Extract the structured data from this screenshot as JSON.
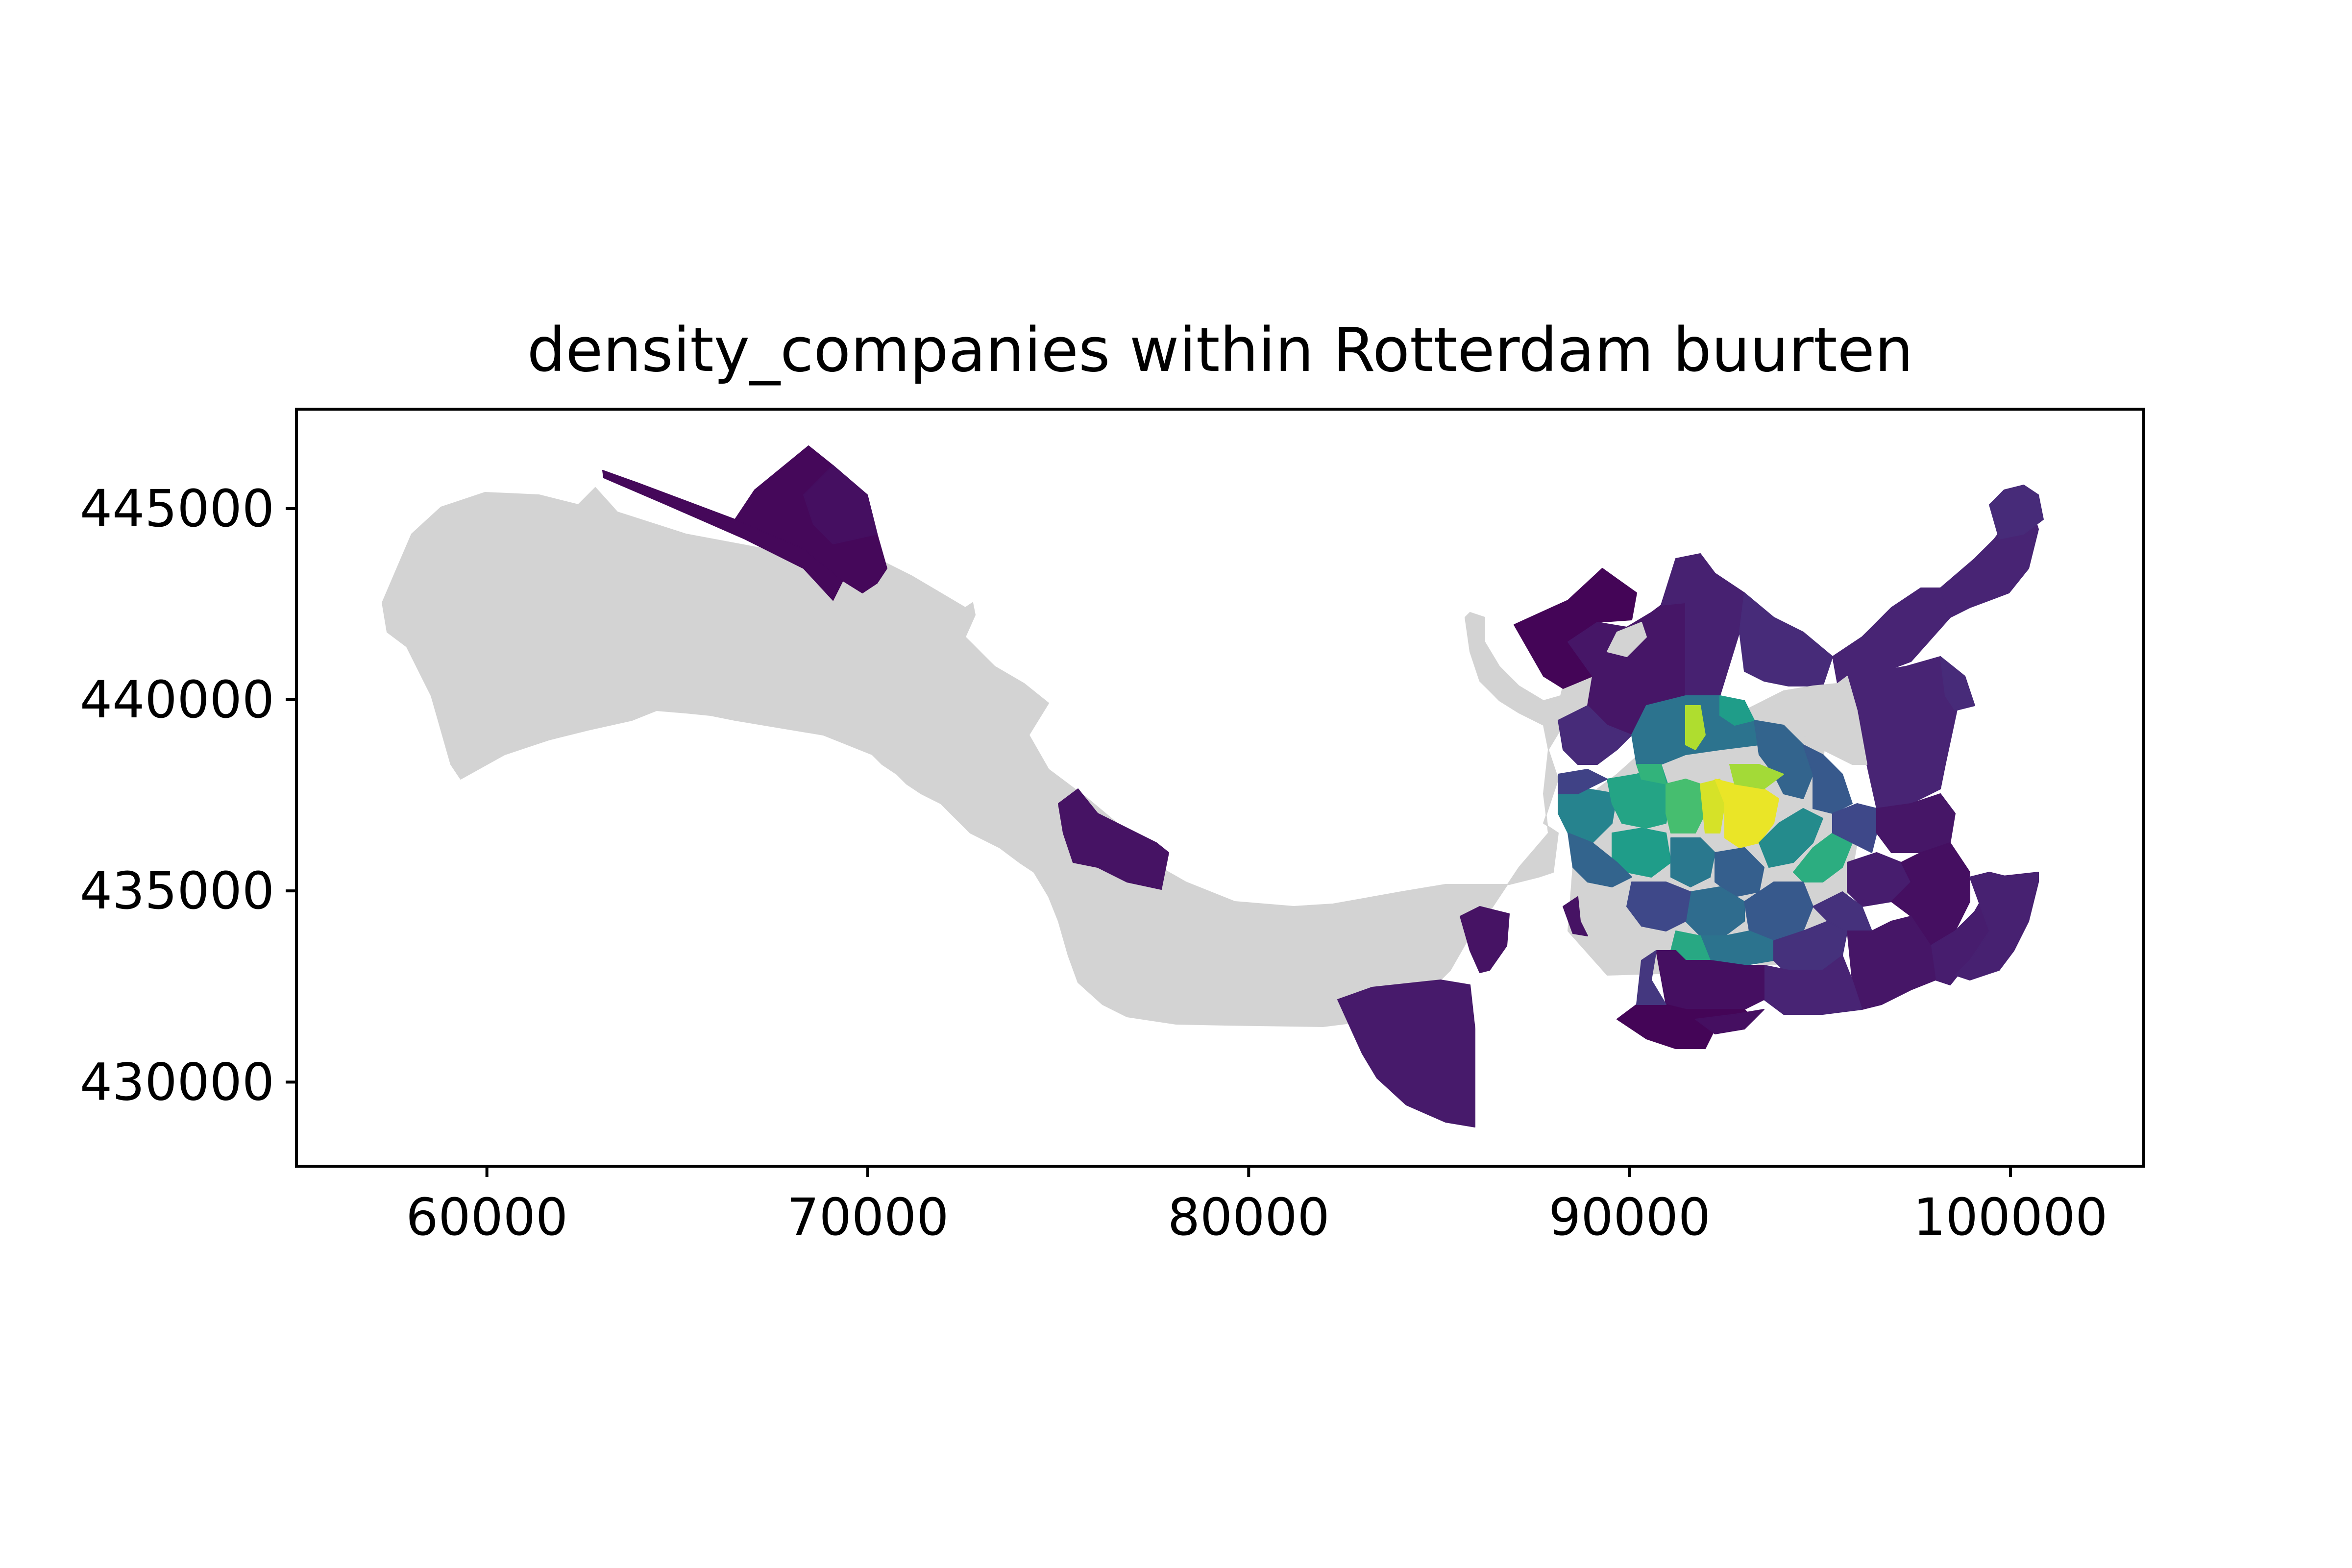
{
  "chart_data": {
    "type": "choropleth",
    "title": "density_companies within Rotterdam buurten",
    "xlabel": "",
    "ylabel": "",
    "xlim": [
      55000,
      103500
    ],
    "ylim": [
      427800,
      447600
    ],
    "x_ticks": [
      60000,
      70000,
      80000,
      90000,
      100000
    ],
    "y_ticks": [
      430000,
      435000,
      440000,
      445000
    ],
    "x_tick_labels": [
      "60000",
      "70000",
      "80000",
      "90000",
      "100000"
    ],
    "y_tick_labels": [
      "430000",
      "435000",
      "440000",
      "445000"
    ],
    "grid": false,
    "legend": "none",
    "colormap": "viridis",
    "no_data_color": "#d3d3d3",
    "colors": {
      "viridis_low": "#440154",
      "viridis_mid": "#21918c",
      "viridis_high": "#fde725"
    }
  }
}
